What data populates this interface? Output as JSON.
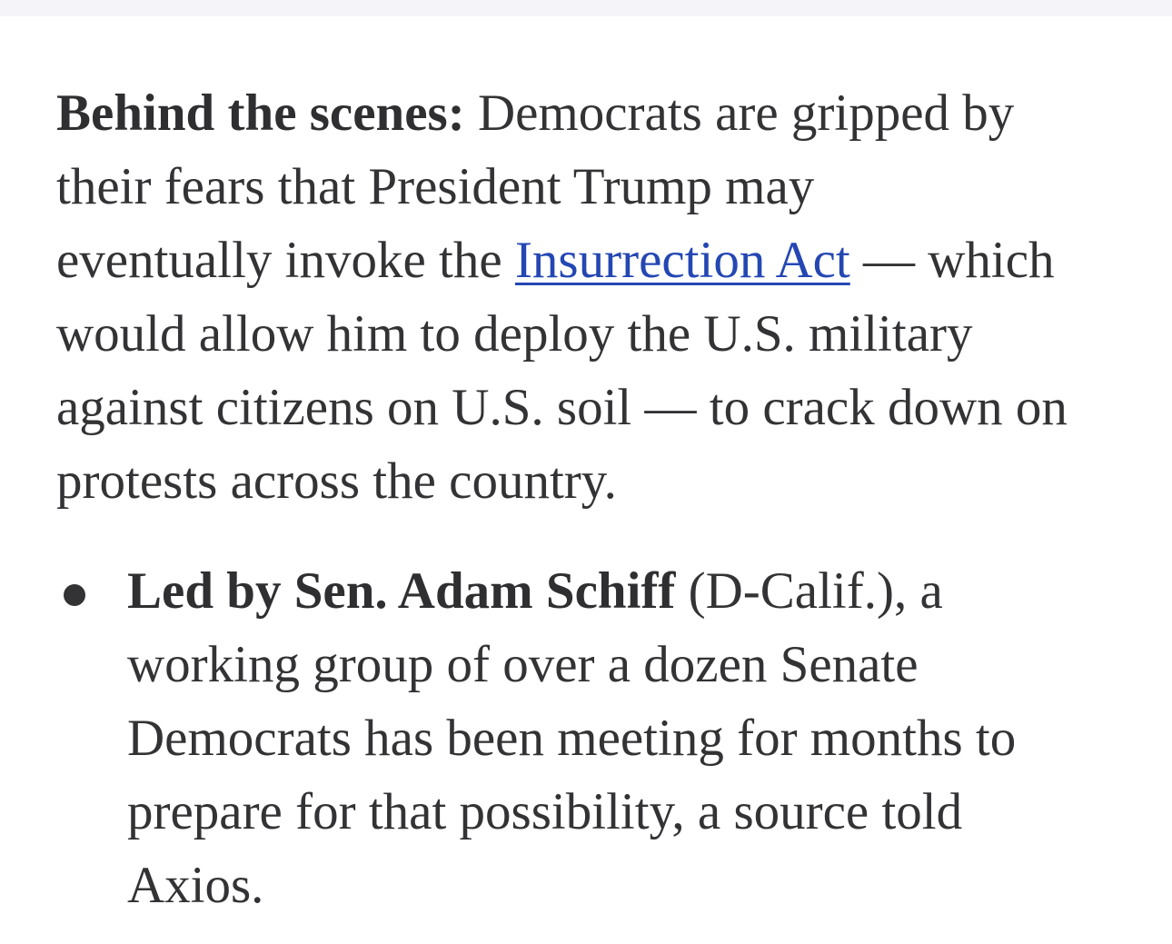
{
  "paragraph": {
    "lead_bold": "Behind the scenes:",
    "line1_rest": " Democrats are gripped by",
    "line2": "their fears that President Trump may",
    "line3_before": "eventually invoke the ",
    "link_text": "Insurrection Act",
    "line3_after": " — which",
    "line4": "would allow him to deploy the U.S. military",
    "line5": "against citizens on U.S. soil — to crack down on",
    "line6": "protests across the country."
  },
  "bullets": [
    {
      "bold": "Led by Sen. Adam Schiff",
      "line1_rest": " (D-Calif.), a",
      "line2": "working group of over a dozen Senate",
      "line3": "Democrats has been meeting for months to",
      "line4": "prepare for that possibility, a source told",
      "line5": "Axios."
    }
  ],
  "colors": {
    "text": "#333336",
    "link": "#2447b3",
    "top_bar": "#f5f5f9"
  }
}
